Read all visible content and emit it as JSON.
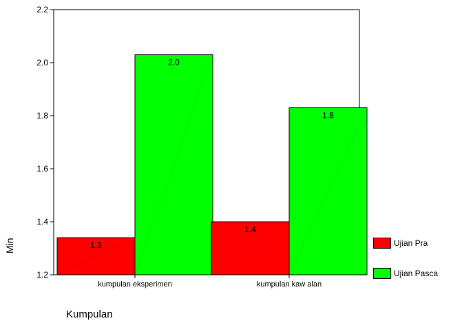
{
  "chart_data": {
    "type": "bar",
    "categories": [
      "kumpulan eksperimen",
      "kumpulan kaw alan"
    ],
    "series": [
      {
        "name": "Ujian Pra",
        "values": [
          1.34,
          1.4
        ],
        "labels": [
          "1.3",
          "1.4"
        ],
        "color": "#ff0000"
      },
      {
        "name": "Ujian Pasca",
        "values": [
          2.03,
          1.83
        ],
        "labels": [
          "2.0",
          "1.8"
        ],
        "color": "#00ff00"
      }
    ],
    "xlabel": "Kumpulan",
    "ylabel": "Min",
    "ylim": [
      1.2,
      2.2
    ],
    "yticks": [
      "1.2",
      "1.4",
      "1.6",
      "1.8",
      "2.0",
      "2.2"
    ],
    "legend_position": "right-bottom",
    "grid": false
  }
}
